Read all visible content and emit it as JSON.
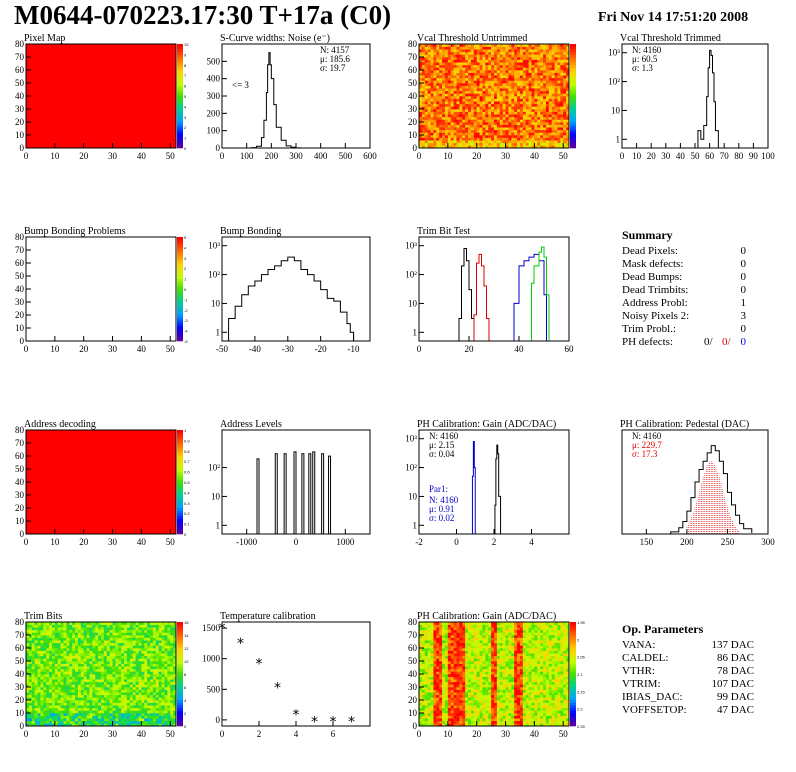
{
  "title": "M0644-070223.17:30 T+17a (C0)",
  "date": "Fri Nov 14 17:51:20 2008",
  "colors": {
    "black": "#000000",
    "red": "#dd0000",
    "blue": "#0000cc",
    "green": "#00cc00"
  },
  "chart_data": [
    {
      "id": "pixel-map",
      "type": "heatmap",
      "title": "Pixel Map",
      "fill": "uniform-red",
      "xlim": [
        0,
        52
      ],
      "ylim": [
        0,
        80
      ],
      "xticks": [
        "0",
        "10",
        "20",
        "30",
        "40",
        "50"
      ],
      "yticks": [
        "0",
        "10",
        "20",
        "30",
        "40",
        "50",
        "60",
        "70",
        "80"
      ],
      "colorbar": "palette",
      "colorbar_ticks": [
        "0",
        "1",
        "2",
        "3",
        "4",
        "5",
        "6",
        "7",
        "8",
        "9",
        "10"
      ]
    },
    {
      "id": "scurve-noise",
      "type": "line",
      "title": "S-Curve widths: Noise (e⁻)",
      "stats": [
        "N: 4157",
        "μ: 185.6",
        "σ: 19.7"
      ],
      "note": "<= 3",
      "xlim": [
        0,
        600
      ],
      "ylim": [
        0,
        600
      ],
      "xticks": [
        "0",
        "100",
        "200",
        "300",
        "400",
        "500",
        "600"
      ],
      "yticks": [
        "0",
        "100",
        "200",
        "300",
        "400",
        "500"
      ],
      "series": [
        {
          "color": "#000000",
          "x": [
            100,
            120,
            140,
            160,
            170,
            180,
            185,
            190,
            195,
            200,
            210,
            220,
            240,
            260,
            280,
            300,
            320
          ],
          "y": [
            0,
            2,
            10,
            60,
            160,
            320,
            480,
            550,
            480,
            400,
            250,
            120,
            45,
            12,
            4,
            1,
            0
          ]
        }
      ]
    },
    {
      "id": "vcal-untrimmed",
      "type": "heatmap",
      "title": "Vcal Threshold Untrimmed",
      "fill": "noise-orange",
      "xlim": [
        0,
        52
      ],
      "ylim": [
        0,
        80
      ],
      "xticks": [
        "0",
        "10",
        "20",
        "30",
        "40",
        "50"
      ],
      "yticks": [
        "0",
        "10",
        "20",
        "30",
        "40",
        "50",
        "60",
        "70",
        "80"
      ],
      "colorbar": "palette",
      "colorbar_ticks": [
        "",
        "",
        "",
        "",
        "",
        "",
        "",
        "",
        "",
        ""
      ]
    },
    {
      "id": "vcal-trimmed",
      "type": "line",
      "title": "Vcal Threshold Trimmed",
      "stats": [
        "N: 4160",
        "μ: 60.5",
        "σ: 1.3"
      ],
      "log": true,
      "xlim": [
        0,
        100
      ],
      "ylim": [
        0.5,
        2000
      ],
      "xticks": [
        "0",
        "10",
        "20",
        "30",
        "40",
        "50",
        "60",
        "70",
        "80",
        "90",
        "100"
      ],
      "yticks": [
        "1",
        "10",
        "10²",
        "10³"
      ],
      "series": [
        {
          "color": "#000000",
          "x": [
            50,
            52,
            54,
            56,
            58,
            59,
            60,
            61,
            62,
            63,
            64,
            66
          ],
          "y": [
            0.5,
            2,
            1,
            3,
            30,
            300,
            1200,
            800,
            200,
            20,
            2,
            0.5
          ]
        }
      ]
    },
    {
      "id": "bump-problems",
      "type": "heatmap",
      "title": "Bump Bonding Problems",
      "fill": "empty",
      "xlim": [
        0,
        52
      ],
      "ylim": [
        0,
        80
      ],
      "xticks": [
        "0",
        "10",
        "20",
        "30",
        "40",
        "50"
      ],
      "yticks": [
        "0",
        "10",
        "20",
        "30",
        "40",
        "50",
        "60",
        "70",
        "80"
      ],
      "colorbar": "palette",
      "colorbar_ticks": [
        "-5",
        "-4",
        "-3",
        "-2",
        "-1",
        "0",
        "1",
        "2",
        "3",
        "4",
        "5"
      ]
    },
    {
      "id": "bump-bonding",
      "type": "line",
      "title": "Bump Bonding",
      "log": true,
      "xlim": [
        -50,
        -5
      ],
      "ylim": [
        0.5,
        2000
      ],
      "xticks": [
        "-50",
        "-40",
        "-30",
        "-20",
        "-10"
      ],
      "yticks": [
        "1",
        "10",
        "10²",
        "10³"
      ],
      "series": [
        {
          "color": "#000000",
          "x": [
            -48,
            -46,
            -44,
            -42,
            -40,
            -38,
            -36,
            -34,
            -32,
            -30,
            -28,
            -26,
            -24,
            -22,
            -20,
            -18,
            -16,
            -14,
            -12,
            -11,
            -10
          ],
          "y": [
            3,
            8,
            20,
            40,
            60,
            100,
            150,
            200,
            300,
            400,
            300,
            150,
            100,
            60,
            30,
            15,
            12,
            5,
            2,
            1,
            0.5
          ]
        }
      ]
    },
    {
      "id": "trim-bit-test",
      "type": "line",
      "title": "Trim Bit Test",
      "log": true,
      "xlim": [
        0,
        60
      ],
      "ylim": [
        0.5,
        2000
      ],
      "xticks": [
        "0",
        "20",
        "40",
        "60"
      ],
      "yticks": [
        "1",
        "10",
        "10²",
        "10³"
      ],
      "series": [
        {
          "color": "#000000",
          "x": [
            15,
            16,
            17,
            18,
            19,
            20,
            21,
            22
          ],
          "y": [
            0.5,
            3,
            200,
            800,
            300,
            30,
            3,
            0.5
          ]
        },
        {
          "color": "#dd0000",
          "x": [
            21,
            22,
            23,
            24,
            25,
            26,
            27,
            28
          ],
          "y": [
            0.5,
            4,
            250,
            500,
            200,
            40,
            3,
            0.5
          ]
        },
        {
          "color": "#0000cc",
          "x": [
            37,
            38,
            40,
            42,
            44,
            46,
            48,
            50,
            51
          ],
          "y": [
            0.5,
            10,
            200,
            300,
            400,
            500,
            300,
            20,
            0.5
          ]
        },
        {
          "color": "#00cc00",
          "x": [
            44,
            45,
            46,
            48,
            49,
            50,
            51,
            52
          ],
          "y": [
            0.5,
            50,
            200,
            600,
            900,
            400,
            20,
            0.5
          ]
        }
      ]
    },
    {
      "id": "address-decoding",
      "type": "heatmap",
      "title": "Address decoding",
      "fill": "uniform-red",
      "xlim": [
        0,
        52
      ],
      "ylim": [
        0,
        80
      ],
      "xticks": [
        "0",
        "10",
        "20",
        "30",
        "40",
        "50"
      ],
      "yticks": [
        "0",
        "10",
        "20",
        "30",
        "40",
        "50",
        "60",
        "70",
        "80"
      ],
      "colorbar": "palette",
      "colorbar_ticks": [
        "0",
        "0.1",
        "0.2",
        "0.3",
        "0.4",
        "0.5",
        "0.6",
        "0.7",
        "0.8",
        "0.9",
        "1"
      ]
    },
    {
      "id": "address-levels",
      "type": "line",
      "title": "Address Levels",
      "log": true,
      "xlim": [
        -1500,
        1500
      ],
      "ylim": [
        0.5,
        2000
      ],
      "xticks": [
        "-1000",
        "0",
        "1000"
      ],
      "yticks": [
        "1",
        "10",
        "10²"
      ],
      "series": [
        {
          "color": "#000000",
          "peaks": [
            -750,
            -380,
            -200,
            0,
            160,
            300,
            380,
            560,
            700
          ],
          "heights": [
            200,
            300,
            300,
            350,
            300,
            300,
            350,
            300,
            250
          ]
        }
      ]
    },
    {
      "id": "ph-gain",
      "type": "line",
      "title": "PH Calibration: Gain (ADC/DAC)",
      "log": true,
      "stats": [
        "N: 4160",
        "μ: 2.15",
        "σ: 0.04"
      ],
      "stats2_title": "Par1:",
      "stats2": [
        "N: 4160",
        "μ: 0.91",
        "σ: 0.02"
      ],
      "xlim": [
        -2,
        6
      ],
      "ylim": [
        0.5,
        2000
      ],
      "xticks": [
        "-2",
        "0",
        "2",
        "4"
      ],
      "yticks": [
        "1",
        "10",
        "10²",
        "10³"
      ],
      "series": [
        {
          "color": "#000000",
          "x": [
            1.95,
            2.05,
            2.1,
            2.15,
            2.2,
            2.25,
            2.35
          ],
          "y": [
            0.5,
            5,
            200,
            600,
            300,
            10,
            0.5
          ]
        },
        {
          "color": "#0000cc",
          "x": [
            0.8,
            0.85,
            0.9,
            0.95,
            1.0
          ],
          "y": [
            0.5,
            50,
            800,
            100,
            0.5
          ]
        }
      ]
    },
    {
      "id": "ph-pedestal",
      "type": "line",
      "title": "PH Calibration: Pedestal (DAC)",
      "stats": [
        "N: 4160",
        "μ: 229.7",
        "σ: 17.3"
      ],
      "xlim": [
        120,
        300
      ],
      "ylim": [
        0,
        100
      ],
      "xticks": [
        "150",
        "200",
        "250",
        "300"
      ],
      "yticks": [],
      "series": [
        {
          "color": "#000000",
          "x": [
            180,
            190,
            195,
            200,
            205,
            210,
            215,
            220,
            225,
            230,
            235,
            240,
            245,
            250,
            255,
            260,
            265,
            270,
            280
          ],
          "y": [
            2,
            6,
            12,
            22,
            35,
            50,
            62,
            70,
            78,
            85,
            80,
            70,
            58,
            40,
            28,
            18,
            10,
            5,
            1
          ]
        }
      ]
    },
    {
      "id": "trim-bits",
      "type": "heatmap",
      "title": "Trim Bits",
      "fill": "noise-green",
      "xlim": [
        0,
        52
      ],
      "ylim": [
        0,
        80
      ],
      "xticks": [
        "0",
        "10",
        "20",
        "30",
        "40",
        "50"
      ],
      "yticks": [
        "0",
        "10",
        "20",
        "30",
        "40",
        "50",
        "60",
        "70",
        "80"
      ],
      "colorbar": "palette",
      "colorbar_ticks": [
        "0",
        "2",
        "4",
        "6",
        "8",
        "10",
        "12",
        "14",
        "16"
      ]
    },
    {
      "id": "temperature",
      "type": "scatter",
      "title": "Temperature calibration",
      "xlim": [
        0,
        8
      ],
      "ylim": [
        -100,
        1600
      ],
      "xticks": [
        "0",
        "2",
        "4",
        "6"
      ],
      "yticks": [
        "0",
        "500",
        "1000",
        "1500"
      ],
      "series": [
        {
          "color": "#000000",
          "x": [
            0,
            1,
            2,
            3,
            4,
            5,
            6,
            7
          ],
          "y": [
            1500,
            1260,
            920,
            530,
            90,
            -30,
            -30,
            -30
          ]
        }
      ]
    },
    {
      "id": "ph-gain-map",
      "type": "heatmap",
      "title": "PH Calibration: Gain (ADC/DAC)",
      "fill": "noise-stripes",
      "xlim": [
        0,
        52
      ],
      "ylim": [
        0,
        80
      ],
      "xticks": [
        "0",
        "10",
        "20",
        "30",
        "40",
        "50"
      ],
      "yticks": [
        "0",
        "10",
        "20",
        "30",
        "40",
        "50",
        "60",
        "70",
        "80"
      ],
      "colorbar": "palette",
      "colorbar_ticks": [
        "2.25",
        "2.2",
        "2.15",
        "2.1",
        "2.05",
        "2",
        "1.95"
      ]
    }
  ],
  "summary": {
    "heading": "Summary",
    "rows": [
      {
        "label": "Dead Pixels:",
        "value": "0"
      },
      {
        "label": "Mask defects:",
        "value": "0"
      },
      {
        "label": "Dead Bumps:",
        "value": "0"
      },
      {
        "label": "Dead Trimbits:",
        "value": "0"
      },
      {
        "label": "Address Probl:",
        "value": "1"
      },
      {
        "label": "Noisy Pixels 2:",
        "value": "3"
      },
      {
        "label": "Trim Probl.:",
        "value": "0"
      }
    ],
    "ph_label": "PH defects:",
    "ph_values": [
      "0/",
      "0/",
      "0"
    ]
  },
  "op_params": {
    "heading": "Op. Parameters",
    "rows": [
      {
        "label": "VANA:",
        "value": "137 DAC"
      },
      {
        "label": "CALDEL:",
        "value": "86 DAC"
      },
      {
        "label": "VTHR:",
        "value": "78 DAC"
      },
      {
        "label": "VTRIM:",
        "value": "107 DAC"
      },
      {
        "label": "IBIAS_DAC:",
        "value": "99 DAC"
      },
      {
        "label": "VOFFSETOP:",
        "value": "47 DAC"
      }
    ]
  }
}
